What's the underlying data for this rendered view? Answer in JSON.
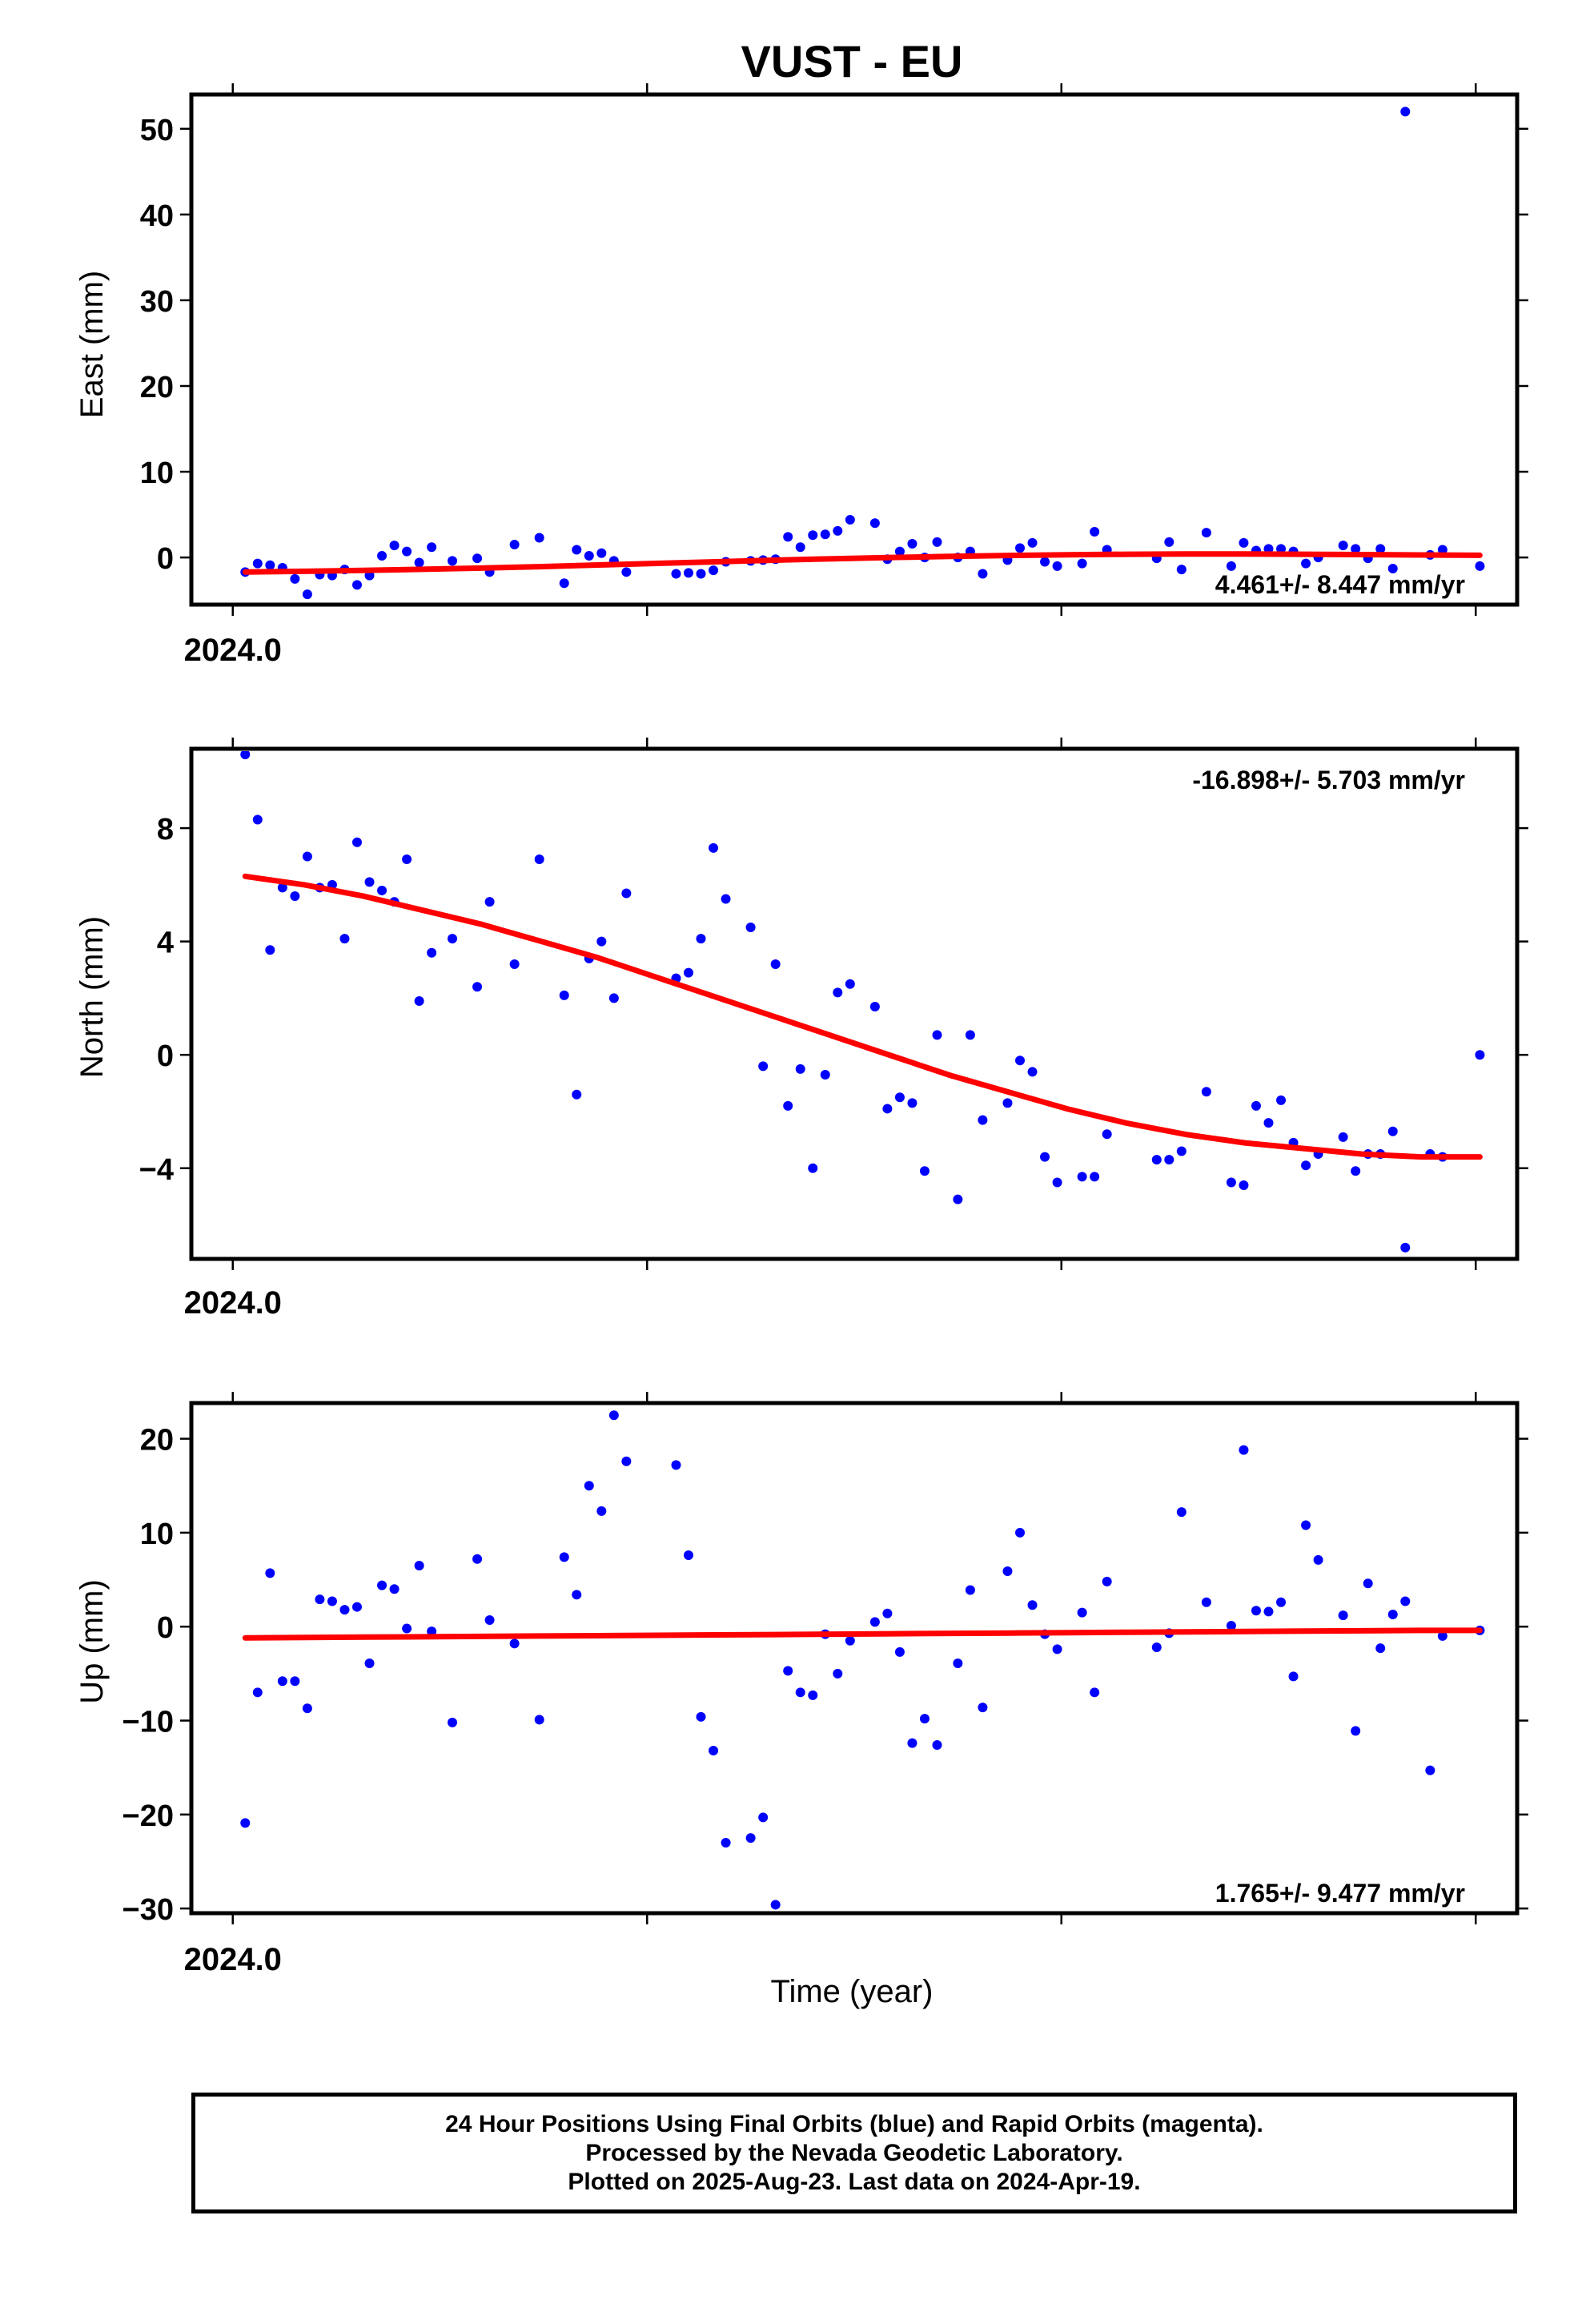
{
  "title": "VUST - EU",
  "xlabel": "Time (year)",
  "colors": {
    "points": "#0000ff",
    "trend": "#ff0000",
    "frame": "#000000"
  },
  "footer": {
    "line1": "24 Hour Positions Using Final Orbits (blue) and Rapid Orbits (magenta).",
    "line2": "Processed by the Nevada Geodetic Laboratory.",
    "line3": "Plotted on 2025-Aug-23. Last data on 2024-Apr-19."
  },
  "chart_data": [
    {
      "type": "scatter",
      "ylabel": "East (mm)",
      "rate_text": "4.461+/- 8.447 mm/yr",
      "rate_position": "bottom-right",
      "xlim": [
        2023.99,
        2024.31
      ],
      "ylim": [
        -5.5,
        54
      ],
      "yticks": [
        0,
        10,
        20,
        30,
        40,
        50
      ],
      "yticklabels": [
        "0",
        "10",
        "20",
        "30",
        "40",
        "50"
      ],
      "xtick_label": "2024.0",
      "x": [
        2024.003,
        2024.006,
        2024.009,
        2024.012,
        2024.015,
        2024.018,
        2024.021,
        2024.024,
        2024.027,
        2024.03,
        2024.033,
        2024.036,
        2024.039,
        2024.042,
        2024.045,
        2024.048,
        2024.053,
        2024.059,
        2024.062,
        2024.068,
        2024.074,
        2024.08,
        2024.083,
        2024.086,
        2024.089,
        2024.092,
        2024.095,
        2024.107,
        2024.11,
        2024.113,
        2024.116,
        2024.119,
        2024.125,
        2024.128,
        2024.131,
        2024.134,
        2024.137,
        2024.14,
        2024.143,
        2024.146,
        2024.149,
        2024.155,
        2024.158,
        2024.161,
        2024.164,
        2024.167,
        2024.17,
        2024.175,
        2024.178,
        2024.181,
        2024.187,
        2024.19,
        2024.193,
        2024.196,
        2024.199,
        2024.205,
        2024.208,
        2024.211,
        2024.223,
        2024.226,
        2024.229,
        2024.235,
        2024.241,
        2024.244,
        2024.247,
        2024.25,
        2024.253,
        2024.256,
        2024.259,
        2024.262,
        2024.268,
        2024.271,
        2024.274,
        2024.277,
        2024.28,
        2024.283,
        2024.289,
        2024.292,
        2024.301
      ],
      "y": [
        -1.7,
        -0.7,
        -0.9,
        -1.2,
        -2.5,
        -4.3,
        -2,
        -2.1,
        -1.4,
        -3.2,
        -2.1,
        0.2,
        1.4,
        0.7,
        -0.6,
        1.2,
        -0.4,
        -0.1,
        -1.7,
        1.5,
        2.3,
        -3,
        0.9,
        0.2,
        0.5,
        -0.4,
        -1.7,
        -1.9,
        -1.8,
        -1.9,
        -1.5,
        -0.5,
        -0.4,
        -0.3,
        -0.2,
        2.4,
        1.2,
        2.6,
        2.7,
        3.1,
        4.4,
        4,
        -0.2,
        0.7,
        1.6,
        0,
        1.8,
        0,
        0.7,
        -1.9,
        -0.3,
        1.1,
        1.7,
        -0.5,
        -1,
        -0.7,
        3,
        0.9,
        -0.1,
        1.8,
        -1.4,
        2.9,
        -1,
        1.7,
        0.8,
        1,
        1,
        0.7,
        -0.7,
        0,
        1.4,
        1,
        -0.1,
        1,
        -1.3,
        52,
        0.3,
        0.9,
        -1
      ],
      "trend": {
        "x": [
          2024.003,
          2024.301
        ],
        "y": [
          -1.7,
          0.4
        ],
        "shape": [
          0,
          0.04,
          0.09,
          0.15,
          0.22,
          0.3,
          0.39,
          0.48,
          0.57,
          0.66,
          0.74,
          0.81,
          0.87,
          0.92,
          0.96,
          0.99,
          1,
          1,
          0.99,
          0.97,
          0.95,
          0.93
        ]
      }
    },
    {
      "type": "scatter",
      "ylabel": "North (mm)",
      "rate_text": "-16.898+/- 5.703 mm/yr",
      "rate_position": "top-right",
      "xlim": [
        2023.99,
        2024.31
      ],
      "ylim": [
        -7.2,
        10.8
      ],
      "yticks": [
        -4,
        0,
        4,
        8
      ],
      "yticklabels": [
        "−4",
        "0",
        "4",
        "8"
      ],
      "xtick_label": "2024.0",
      "x": [
        2024.003,
        2024.006,
        2024.009,
        2024.012,
        2024.015,
        2024.018,
        2024.021,
        2024.024,
        2024.027,
        2024.03,
        2024.033,
        2024.036,
        2024.039,
        2024.042,
        2024.045,
        2024.048,
        2024.053,
        2024.059,
        2024.062,
        2024.068,
        2024.074,
        2024.08,
        2024.083,
        2024.086,
        2024.089,
        2024.092,
        2024.095,
        2024.107,
        2024.11,
        2024.113,
        2024.116,
        2024.119,
        2024.125,
        2024.128,
        2024.131,
        2024.134,
        2024.137,
        2024.14,
        2024.143,
        2024.146,
        2024.149,
        2024.155,
        2024.158,
        2024.161,
        2024.164,
        2024.167,
        2024.17,
        2024.175,
        2024.178,
        2024.181,
        2024.187,
        2024.19,
        2024.193,
        2024.196,
        2024.199,
        2024.205,
        2024.208,
        2024.211,
        2024.223,
        2024.226,
        2024.229,
        2024.235,
        2024.241,
        2024.244,
        2024.247,
        2024.25,
        2024.253,
        2024.256,
        2024.259,
        2024.262,
        2024.268,
        2024.271,
        2024.274,
        2024.277,
        2024.28,
        2024.283,
        2024.289,
        2024.292,
        2024.301
      ],
      "y": [
        10.6,
        8.3,
        3.7,
        5.9,
        5.6,
        7,
        5.9,
        6,
        4.1,
        7.5,
        6.1,
        5.8,
        5.4,
        6.9,
        1.9,
        3.6,
        4.1,
        2.4,
        5.4,
        3.2,
        6.9,
        2.1,
        -1.4,
        3.4,
        4,
        2,
        5.7,
        2.7,
        2.9,
        4.1,
        7.3,
        5.5,
        4.5,
        -0.4,
        3.2,
        -1.8,
        -0.5,
        -4,
        -0.7,
        2.2,
        2.5,
        1.7,
        -1.9,
        -1.5,
        -1.7,
        -4.1,
        0.7,
        -5.1,
        0.7,
        -2.3,
        -1.7,
        -0.2,
        -0.6,
        -3.6,
        -4.5,
        -4.3,
        -4.3,
        -2.8,
        -3.7,
        -3.7,
        -3.4,
        -1.3,
        -4.5,
        -4.6,
        -1.8,
        -2.4,
        -1.6,
        -3.1,
        -3.9,
        -3.5,
        -2.9,
        -4.1,
        -3.5,
        -3.5,
        -2.7,
        -6.8,
        -3.5,
        -3.6,
        0
      ],
      "trend": {
        "x": [
          2024.003,
          2024.301
        ],
        "y": [
          6.3,
          -3.6
        ],
        "shape": [
          0,
          0.03,
          0.07,
          0.12,
          0.17,
          0.23,
          0.29,
          0.36,
          0.43,
          0.5,
          0.57,
          0.64,
          0.71,
          0.77,
          0.83,
          0.88,
          0.92,
          0.95,
          0.97,
          0.99,
          1,
          1
        ]
      }
    },
    {
      "type": "scatter",
      "ylabel": "Up (mm)",
      "rate_text": "1.765+/- 9.477 mm/yr",
      "rate_position": "bottom-right",
      "xlim": [
        2023.99,
        2024.31
      ],
      "ylim": [
        -30.5,
        23.8
      ],
      "yticks": [
        -30,
        -20,
        -10,
        0,
        10,
        20
      ],
      "yticklabels": [
        "−30",
        "−20",
        "−10",
        "0",
        "10",
        "20"
      ],
      "xtick_label": "2024.0",
      "x": [
        2024.003,
        2024.006,
        2024.009,
        2024.012,
        2024.015,
        2024.018,
        2024.021,
        2024.024,
        2024.027,
        2024.03,
        2024.033,
        2024.036,
        2024.039,
        2024.042,
        2024.045,
        2024.048,
        2024.053,
        2024.059,
        2024.062,
        2024.068,
        2024.074,
        2024.08,
        2024.083,
        2024.086,
        2024.089,
        2024.092,
        2024.095,
        2024.107,
        2024.11,
        2024.113,
        2024.116,
        2024.119,
        2024.125,
        2024.128,
        2024.131,
        2024.134,
        2024.137,
        2024.14,
        2024.143,
        2024.146,
        2024.149,
        2024.155,
        2024.158,
        2024.161,
        2024.164,
        2024.167,
        2024.17,
        2024.175,
        2024.178,
        2024.181,
        2024.187,
        2024.19,
        2024.193,
        2024.196,
        2024.199,
        2024.205,
        2024.208,
        2024.211,
        2024.223,
        2024.226,
        2024.229,
        2024.235,
        2024.241,
        2024.244,
        2024.247,
        2024.25,
        2024.253,
        2024.256,
        2024.259,
        2024.262,
        2024.268,
        2024.271,
        2024.274,
        2024.277,
        2024.28,
        2024.283,
        2024.289,
        2024.292,
        2024.301
      ],
      "y": [
        -20.9,
        -7,
        5.7,
        -5.8,
        -5.8,
        -8.7,
        2.9,
        2.7,
        1.8,
        2.1,
        -3.9,
        4.4,
        4,
        -0.2,
        6.5,
        -0.5,
        -10.2,
        7.2,
        0.7,
        -1.8,
        -9.9,
        7.4,
        3.4,
        15,
        12.3,
        22.5,
        17.6,
        17.2,
        7.6,
        -9.6,
        -13.2,
        -23,
        -22.5,
        -20.3,
        -29.6,
        -4.7,
        -7,
        -7.3,
        -0.8,
        -5,
        -1.5,
        0.5,
        1.4,
        -2.7,
        -12.4,
        -9.8,
        -12.6,
        -3.9,
        3.9,
        -8.6,
        5.9,
        10,
        2.3,
        -0.8,
        -2.4,
        1.5,
        -7,
        4.8,
        -2.2,
        -0.7,
        12.2,
        2.6,
        0.1,
        18.8,
        1.7,
        1.6,
        2.6,
        -5.3,
        10.8,
        7.1,
        1.2,
        -11.1,
        4.6,
        -2.3,
        1.3,
        2.7,
        -15.3,
        -1,
        -0.4
      ],
      "trend": {
        "x": [
          2024.003,
          2024.301
        ],
        "y": [
          -1.2,
          -0.4
        ],
        "shape": [
          0,
          0.05,
          0.1,
          0.15,
          0.2,
          0.25,
          0.3,
          0.35,
          0.4,
          0.45,
          0.5,
          0.55,
          0.6,
          0.65,
          0.7,
          0.75,
          0.8,
          0.85,
          0.9,
          0.95,
          1,
          1
        ]
      }
    }
  ]
}
